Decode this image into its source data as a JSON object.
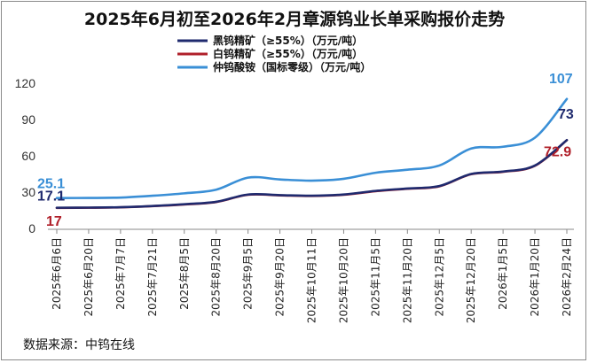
{
  "chart_data": {
    "type": "line",
    "title": "2025年6月初至2026年2月章源钨业长单采购报价走势",
    "x": [
      "2025年6月6日",
      "2025年6月20日",
      "2025年7月7日",
      "2025年7月21日",
      "2025年8月5日",
      "2025年8月20日",
      "2025年9月5日",
      "2025年9月20日",
      "2025年10月11日",
      "2025年10月20日",
      "2025年11月5日",
      "2025年11月20日",
      "2025年12月5日",
      "2025年12月20日",
      "2026年1月5日",
      "2026年1月20日",
      "2026年2月24日"
    ],
    "ylim": [
      0,
      120
    ],
    "yticks": [
      "0",
      "30",
      "60",
      "90",
      "120"
    ],
    "grid": false,
    "legend_position": "top-center",
    "series": [
      {
        "name": "黑钨精矿（≥55%）（万元/吨）",
        "color": "#1f2a6e",
        "values": [
          17.1,
          17.2,
          17.5,
          18.5,
          20,
          22,
          28,
          27.5,
          27,
          28,
          31,
          33,
          35,
          45,
          47,
          52,
          73
        ],
        "labels": [
          {
            "index": 0,
            "text": "17.1",
            "color": "#1f2a6e"
          },
          {
            "index": 16,
            "text": "73",
            "color": "#1f2a6e"
          }
        ]
      },
      {
        "name": "白钨精矿（≥55%）（万元/吨）",
        "color": "#b0202a",
        "values": [
          17,
          17.1,
          17.4,
          18.4,
          19.8,
          21.8,
          27.8,
          27.3,
          26.8,
          27.8,
          30.8,
          32.8,
          34.8,
          44.8,
          46.8,
          51.8,
          72.9
        ],
        "labels": [
          {
            "index": 0,
            "text": "17",
            "color": "#b0202a"
          },
          {
            "index": 16,
            "text": "72.9",
            "color": "#b0202a"
          }
        ]
      },
      {
        "name": "仲钨酸铵（国标零级）（万元/吨）",
        "color": "#3a8fd6",
        "values": [
          25.1,
          25.2,
          25.5,
          27,
          29,
          32,
          42,
          40.5,
          39.5,
          41,
          46,
          48.5,
          52,
          66,
          67.5,
          75,
          107
        ],
        "labels": [
          {
            "index": 0,
            "text": "25.1",
            "color": "#3a8fd6"
          },
          {
            "index": 16,
            "text": "107",
            "color": "#3a8fd6"
          }
        ]
      }
    ]
  },
  "source_text": "数据来源：中钨在线"
}
